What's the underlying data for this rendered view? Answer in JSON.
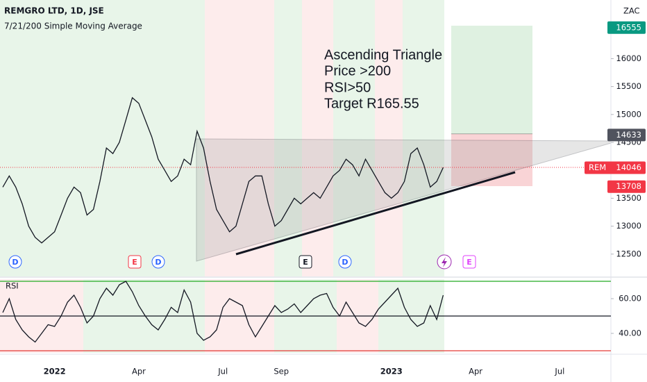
{
  "chart_data": [
    {
      "type": "line",
      "title": "REMGRO LTD, 1D, JSE",
      "subtitle": "7/21/200 Simple Moving Average",
      "currency": "ZAC",
      "annotations": [
        "Ascending Triangle",
        "Price >200",
        "RSI>50",
        "Target R165.55"
      ],
      "events": [
        "D",
        "E",
        "D",
        "E",
        "D",
        "E"
      ],
      "color": "#131722",
      "ylim": [
        12100,
        17050
      ],
      "yticks": [
        12500,
        13000,
        13500,
        14000,
        14500,
        15000,
        15500,
        16000
      ],
      "price_tags": [
        {
          "value": 16555,
          "color": "#089981"
        },
        {
          "value": 14633,
          "color": "#50535e"
        },
        {
          "name": "REM",
          "value": 14046,
          "color": "#f23645"
        },
        {
          "value": 13708,
          "color": "#f23645"
        }
      ],
      "categories": [
        null,
        null,
        null,
        null,
        null,
        null,
        null,
        null,
        "2022",
        null,
        null,
        null,
        null,
        null,
        null,
        null,
        null,
        null,
        null,
        null,
        null,
        "Apr",
        null,
        null,
        null,
        null,
        null,
        null,
        null,
        null,
        null,
        null,
        null,
        null,
        "Jul",
        null,
        null,
        null,
        null,
        null,
        null,
        null,
        null,
        "Sep",
        null,
        null,
        null,
        null,
        null,
        null,
        null,
        null,
        null,
        null,
        null,
        null,
        null,
        null,
        null,
        null,
        "2023",
        null,
        null,
        null,
        null,
        null,
        null,
        null,
        null,
        null,
        null,
        null,
        null,
        "Apr",
        null,
        null,
        null,
        null,
        null,
        null,
        null,
        null,
        null,
        null,
        null,
        null,
        "Jul",
        null,
        null,
        null,
        null,
        null,
        null,
        null
      ],
      "values": [
        13700,
        13900,
        13700,
        13400,
        13000,
        12800,
        12700,
        12800,
        12900,
        13200,
        13500,
        13700,
        13600,
        13200,
        13300,
        13800,
        14400,
        14300,
        14500,
        14900,
        15300,
        15200,
        14900,
        14600,
        14200,
        14000,
        13800,
        13900,
        14200,
        14100,
        14700,
        14400,
        13800,
        13300,
        13100,
        12900,
        13000,
        13400,
        13800,
        13900,
        13900,
        13400,
        13000,
        13100,
        13300,
        13500,
        13400,
        13500,
        13600,
        13500,
        13700,
        13900,
        14000,
        14200,
        14100,
        13900,
        14200,
        14000,
        13800,
        13600,
        13500,
        13600,
        13800,
        14300,
        14400,
        14100,
        13700,
        13800,
        14050,
        null,
        null,
        null,
        null,
        null,
        null,
        null,
        null,
        null,
        null,
        null,
        null,
        null,
        null,
        null,
        null,
        null,
        null,
        null,
        null,
        null,
        null,
        null,
        null,
        null
      ]
    },
    {
      "type": "line",
      "title": "RSI",
      "color": "#131722",
      "ylim": [
        28.8,
        71.2
      ],
      "yticks": [
        {
          "value": 60,
          "label": "60.00"
        },
        {
          "value": 40,
          "label": "40.00"
        }
      ],
      "levels": [
        {
          "value": 70,
          "color": "#22ab22"
        },
        {
          "value": 50,
          "color": "#131722"
        },
        {
          "value": 30,
          "color": "#e53935"
        }
      ],
      "values": [
        52,
        60,
        48,
        42,
        38,
        35,
        40,
        45,
        44,
        50,
        58,
        62,
        55,
        46,
        50,
        60,
        66,
        62,
        68,
        70,
        64,
        56,
        50,
        45,
        42,
        48,
        55,
        52,
        65,
        58,
        40,
        36,
        38,
        42,
        55,
        60,
        58,
        56,
        45,
        38,
        44,
        50,
        56,
        52,
        54,
        57,
        52,
        56,
        60,
        62,
        63,
        55,
        50,
        58,
        52,
        46,
        44,
        48,
        54,
        58,
        62,
        66,
        55,
        48,
        44,
        46,
        56,
        48,
        62,
        null,
        null,
        null,
        null,
        null,
        null,
        null,
        null,
        null,
        null,
        null,
        null,
        null,
        null,
        null,
        null,
        null,
        null,
        null,
        null,
        null,
        null,
        null,
        null,
        null
      ]
    }
  ]
}
